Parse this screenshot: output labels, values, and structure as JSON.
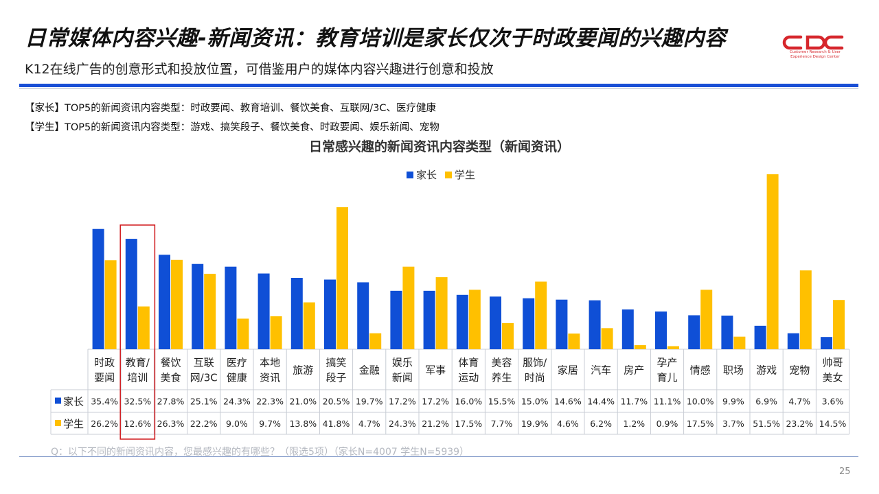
{
  "header": {
    "title": "日常媒体内容兴趣-新闻资讯：教育培训是家长仅次于时政要闻的兴趣内容",
    "subtitle": "K12在线广告的创意形式和投放位置，可借鉴用户的媒体内容兴趣进行创意和投放",
    "logo_text": "Customer Research & User Experience Design Center"
  },
  "notes": {
    "parent": "【家长】TOP5的新闻资讯内容类型：时政要闻、教育培训、餐饮美食、互联网/3C、医疗健康",
    "student": "【学生】TOP5的新闻资讯内容类型：游戏、搞笑段子、餐饮美食、时政要闻、娱乐新闻、宠物"
  },
  "colors": {
    "parent": "#0f4fd6",
    "student": "#ffc000",
    "highlight": "#d0191c",
    "brand": "#d6262c"
  },
  "chart_data": {
    "type": "bar",
    "title": "日常感兴趣的新闻资讯内容类型（新闻资讯）",
    "legend_position": "top",
    "highlight_category_index": 1,
    "categories": [
      [
        "时政",
        "要闻"
      ],
      [
        "教育/",
        "培训"
      ],
      [
        "餐饮",
        "美食"
      ],
      [
        "互联",
        "网/3C"
      ],
      [
        "医疗",
        "健康"
      ],
      [
        "本地",
        "资讯"
      ],
      [
        "旅游"
      ],
      [
        "搞笑",
        "段子"
      ],
      [
        "金融"
      ],
      [
        "娱乐",
        "新闻"
      ],
      [
        "军事"
      ],
      [
        "体育",
        "运动"
      ],
      [
        "美容",
        "养生"
      ],
      [
        "服饰/",
        "时尚"
      ],
      [
        "家居"
      ],
      [
        "汽车"
      ],
      [
        "房产"
      ],
      [
        "孕产",
        "育儿"
      ],
      [
        "情感"
      ],
      [
        "职场"
      ],
      [
        "游戏"
      ],
      [
        "宠物"
      ],
      [
        "帅哥",
        "美女"
      ]
    ],
    "series": [
      {
        "name": "家长",
        "values": [
          35.4,
          32.5,
          27.8,
          25.1,
          24.3,
          22.3,
          21.0,
          20.5,
          19.7,
          17.2,
          17.2,
          16.0,
          15.5,
          15.0,
          14.6,
          14.4,
          11.7,
          11.1,
          10.0,
          9.9,
          6.9,
          4.7,
          3.6
        ],
        "labels": [
          "35.4%",
          "32.5%",
          "27.8%",
          "25.1%",
          "24.3%",
          "22.3%",
          "21.0%",
          "20.5%",
          "19.7%",
          "17.2%",
          "17.2%",
          "16.0%",
          "15.5%",
          "15.0%",
          "14.6%",
          "14.4%",
          "11.7%",
          "11.1%",
          "10.0%",
          "9.9%",
          "6.9%",
          "4.7%",
          "3.6%"
        ]
      },
      {
        "name": "学生",
        "values": [
          26.2,
          12.6,
          26.3,
          22.2,
          9.0,
          9.7,
          13.8,
          41.8,
          4.7,
          24.3,
          21.2,
          17.5,
          7.7,
          19.9,
          4.6,
          6.2,
          1.2,
          0.9,
          17.5,
          3.7,
          51.5,
          23.2,
          14.5
        ],
        "labels": [
          "26.2%",
          "12.6%",
          "26.3%",
          "22.2%",
          "9.0%",
          "9.7%",
          "13.8%",
          "41.8%",
          "4.7%",
          "24.3%",
          "21.2%",
          "17.5%",
          "7.7%",
          "19.9%",
          "4.6%",
          "6.2%",
          "1.2%",
          "0.9%",
          "17.5%",
          "3.7%",
          "51.5%",
          "23.2%",
          "14.5%"
        ]
      }
    ],
    "ylim": [
      0,
      51.5
    ]
  },
  "footer": {
    "question": "Q：以下不同的新闻资讯内容，您最感兴趣的有哪些？（限选5项）（家长N=4007    学生N=5939）",
    "page_number": "25"
  }
}
